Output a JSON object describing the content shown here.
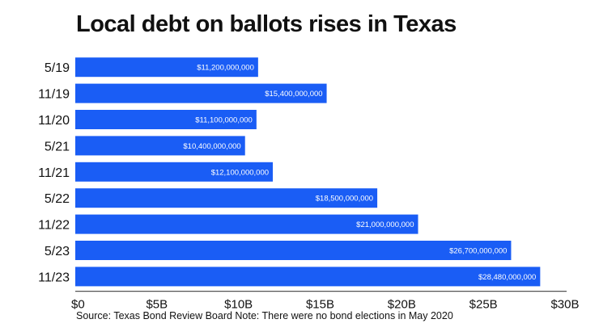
{
  "chart_data": {
    "type": "bar",
    "orientation": "horizontal",
    "title": "Local debt on ballots rises in Texas",
    "categories": [
      "5/19",
      "11/19",
      "11/20",
      "5/21",
      "11/21",
      "5/22",
      "11/22",
      "5/23",
      "11/23"
    ],
    "values": [
      11200000000,
      15400000000,
      11100000000,
      10400000000,
      12100000000,
      18500000000,
      21000000000,
      26700000000,
      28480000000
    ],
    "data_labels": [
      "$11,200,000,000",
      "$15,400,000,000",
      "$11,100,000,000",
      "$10,400,000,000",
      "$12,100,000,000",
      "$18,500,000,000",
      "$21,000,000,000",
      "$26,700,000,000",
      "$28,480,000,000"
    ],
    "xlabel": "",
    "ylabel": "",
    "xlim": [
      0,
      30000000000
    ],
    "xticks": [
      0,
      5000000000,
      10000000000,
      15000000000,
      20000000000,
      25000000000,
      30000000000
    ],
    "xtick_labels": [
      "$0",
      "$5B",
      "$10B",
      "$15B",
      "$20B",
      "$25B",
      "$30B"
    ],
    "grid": false,
    "legend": null,
    "bar_color": "#1a5df5",
    "note": "Source: Texas Bond Review Board Note: There were no bond elections in May 2020"
  }
}
